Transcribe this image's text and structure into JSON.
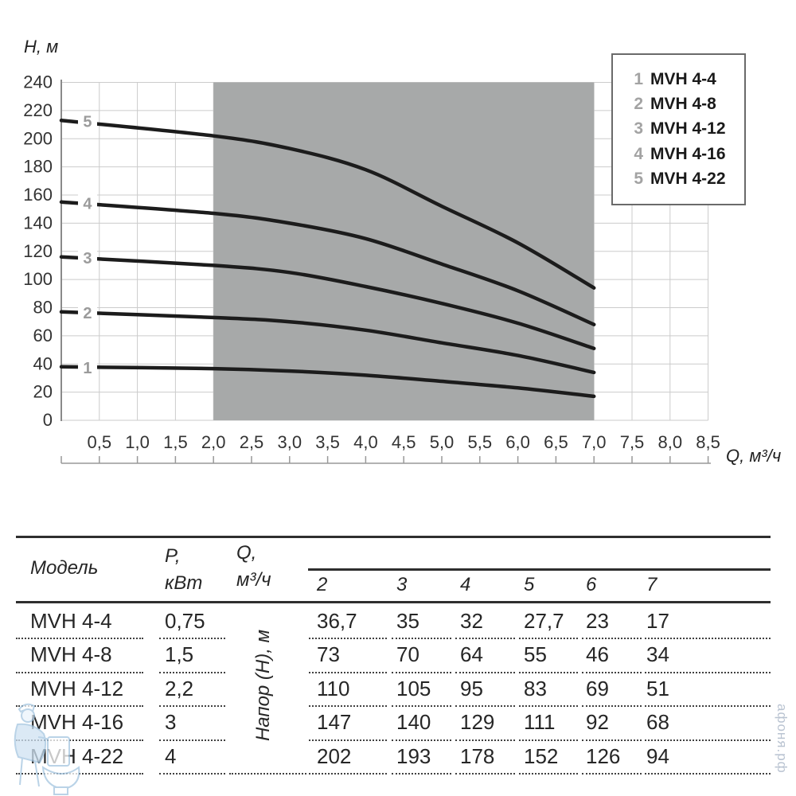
{
  "watermark": {
    "site_text": "афоня.рф"
  },
  "chart": {
    "y_axis_title": "H, м",
    "x_axis_title": "Q, м³/ч",
    "y_tick_labels": [
      "0",
      "20",
      "40",
      "60",
      "80",
      "100",
      "120",
      "140",
      "160",
      "180",
      "200",
      "220",
      "240"
    ],
    "x_tick_labels": [
      "0,5",
      "1,0",
      "1,5",
      "2,0",
      "2,5",
      "3,0",
      "3,5",
      "4,0",
      "4,5",
      "5,0",
      "5,5",
      "6,0",
      "6,5",
      "7,0",
      "7,5",
      "8,0",
      "8,5"
    ],
    "colors": {
      "curve": "#1c1c1c",
      "shaded_region": "#a7a9a9",
      "grid": "#cbcbcb",
      "axis_line": "#8a8a8a",
      "curve_label": "#9b9b9b",
      "watermark": "#b6c0cf"
    }
  },
  "chart_data": {
    "type": "line",
    "title": "",
    "xlabel": "Q, м³/ч",
    "ylabel": "H, м",
    "xlim": [
      0,
      8.5
    ],
    "ylim": [
      0,
      240
    ],
    "x_tick_step": 0.5,
    "y_tick_step": 20,
    "grid": true,
    "legend_position": "top-right",
    "shaded_x_range": [
      2,
      7
    ],
    "series": [
      {
        "curve_number": "1",
        "name": "MVH 4-4",
        "x": [
          0,
          2,
          3,
          4,
          5,
          6,
          7
        ],
        "y": [
          38,
          36.7,
          35,
          32,
          27.7,
          23,
          17
        ]
      },
      {
        "curve_number": "2",
        "name": "MVH 4-8",
        "x": [
          0,
          2,
          3,
          4,
          5,
          6,
          7
        ],
        "y": [
          77,
          73,
          70,
          64,
          55,
          46,
          34
        ]
      },
      {
        "curve_number": "3",
        "name": "MVH 4-12",
        "x": [
          0,
          2,
          3,
          4,
          5,
          6,
          7
        ],
        "y": [
          116,
          110,
          105,
          95,
          83,
          69,
          51
        ]
      },
      {
        "curve_number": "4",
        "name": "MVH 4-16",
        "x": [
          0,
          2,
          3,
          4,
          5,
          6,
          7
        ],
        "y": [
          155,
          147,
          140,
          129,
          111,
          92,
          68
        ]
      },
      {
        "curve_number": "5",
        "name": "MVH 4-22",
        "x": [
          0,
          2,
          3,
          4,
          5,
          6,
          7
        ],
        "y": [
          213,
          202,
          193,
          178,
          152,
          126,
          94
        ]
      }
    ]
  },
  "table": {
    "model_header": "Модель",
    "power_header_line1": "P,",
    "power_header_line2": "кВт",
    "flow_header_line1": "Q,",
    "flow_header_line2": "м³/ч",
    "group_header": "Напор (H), м",
    "flow_columns": [
      "2",
      "3",
      "4",
      "5",
      "6",
      "7"
    ],
    "rows": [
      {
        "model": "MVH 4-4",
        "power": "0,75",
        "head_values": [
          "36,7",
          "35",
          "32",
          "27,7",
          "23",
          "17"
        ]
      },
      {
        "model": "MVH 4-8",
        "power": "1,5",
        "head_values": [
          "73",
          "70",
          "64",
          "55",
          "46",
          "34"
        ]
      },
      {
        "model": "MVH 4-12",
        "power": "2,2",
        "head_values": [
          "110",
          "105",
          "95",
          "83",
          "69",
          "51"
        ]
      },
      {
        "model": "MVH 4-16",
        "power": "3",
        "head_values": [
          "147",
          "140",
          "129",
          "111",
          "92",
          "68"
        ]
      },
      {
        "model": "MVH 4-22",
        "power": "4",
        "head_values": [
          "202",
          "193",
          "178",
          "152",
          "126",
          "94"
        ]
      }
    ]
  }
}
